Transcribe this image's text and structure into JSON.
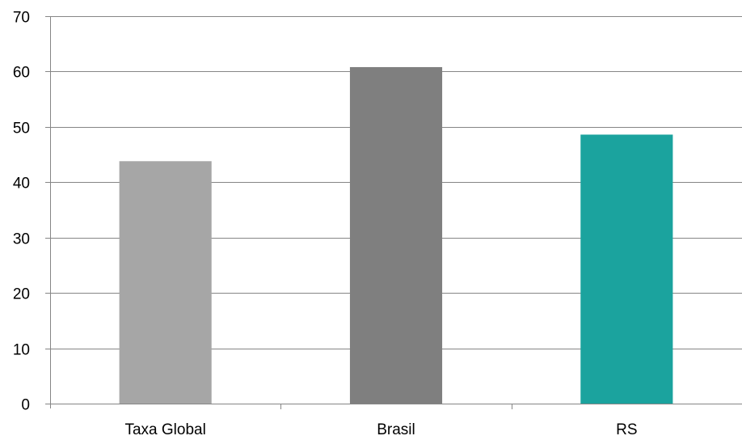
{
  "chart_data": {
    "type": "bar",
    "title": "",
    "xlabel": "",
    "ylabel": "",
    "categories": [
      "Taxa Global",
      "Brasil",
      "RS"
    ],
    "values": [
      43.8,
      60.8,
      48.6
    ],
    "bar_colors": [
      "#a6a6a6",
      "#7f7f7f",
      "#1ba39e"
    ],
    "ylim": [
      0,
      70
    ],
    "yticks": [
      0,
      10,
      20,
      30,
      40,
      50,
      60,
      70
    ],
    "grid": true,
    "legend": "none"
  }
}
